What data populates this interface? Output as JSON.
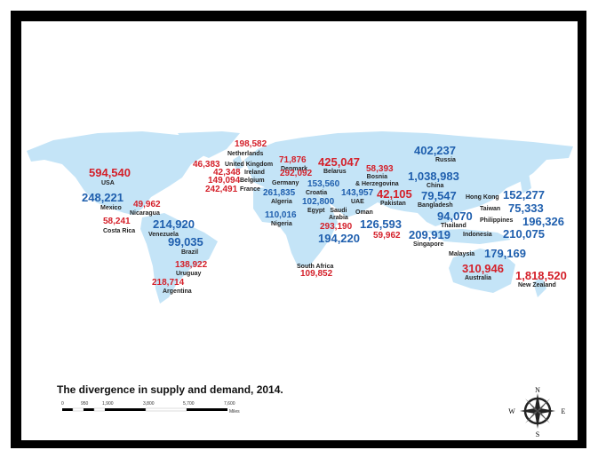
{
  "title": "The divergence in supply and demand, 2014.",
  "colors": {
    "land": "#c4e4f7",
    "surplus": "#d4202a",
    "deficit": "#1f5fae",
    "frame": "#000000"
  },
  "labels": [
    {
      "country": "USA",
      "value": "594,540",
      "color": "red"
    },
    {
      "country": "Mexico",
      "value": "248,221",
      "color": "blue"
    },
    {
      "country": "Nicaragua",
      "value": "49,962",
      "color": "red"
    },
    {
      "country": "Costa Rica",
      "value": "58,241",
      "color": "red"
    },
    {
      "country": "Venezuela",
      "value": "214,920",
      "color": "blue"
    },
    {
      "country": "Brazil",
      "value": "99,035",
      "color": "blue"
    },
    {
      "country": "Uruguay",
      "value": "138,922",
      "color": "red"
    },
    {
      "country": "Argentina",
      "value": "218,714",
      "color": "red"
    },
    {
      "country": "Netherlands",
      "value": "198,582",
      "color": "red"
    },
    {
      "country": "United Kingdom",
      "value": "46,383",
      "color": "red"
    },
    {
      "country": "Ireland",
      "value": "42,348",
      "color": "red"
    },
    {
      "country": "Belgium",
      "value": "149,094",
      "color": "red"
    },
    {
      "country": "France",
      "value": "242,491",
      "color": "red"
    },
    {
      "country": "Denmark",
      "value": "71,876",
      "color": "red"
    },
    {
      "country": "Belarus",
      "value": "425,047",
      "color": "red"
    },
    {
      "country": "Bosnia & Herzegovina",
      "value": "58,393",
      "color": "red"
    },
    {
      "country": "Germany",
      "value": "292,092",
      "color": "red"
    },
    {
      "country": "Croatia",
      "value": "153,560",
      "color": "blue"
    },
    {
      "country": "Algeria",
      "value": "261,835",
      "color": "blue"
    },
    {
      "country": "Egypt",
      "value": "102,800",
      "color": "blue"
    },
    {
      "country": "UAE",
      "value": "143,957",
      "color": "blue"
    },
    {
      "country": "Pakistan",
      "value": "42,105",
      "color": "red"
    },
    {
      "country": "Nigeria",
      "value": "110,016",
      "color": "blue"
    },
    {
      "country": "Saudi Arabia",
      "value": "293,190",
      "color": "red"
    },
    {
      "country": "Saudi Arabia",
      "value": "194,220",
      "color": "blue"
    },
    {
      "country": "Oman",
      "value": "126,593",
      "color": "blue"
    },
    {
      "country": "Oman",
      "value": "59,962",
      "color": "red"
    },
    {
      "country": "Russia",
      "value": "402,237",
      "color": "blue"
    },
    {
      "country": "China",
      "value": "1,038,983",
      "color": "blue"
    },
    {
      "country": "Bangladesh",
      "value": "79,547",
      "color": "blue"
    },
    {
      "country": "Thailand",
      "value": "94,070",
      "color": "blue"
    },
    {
      "country": "Hong Kong",
      "value": "152,277",
      "color": "blue"
    },
    {
      "country": "Taiwan",
      "value": "75,333",
      "color": "blue"
    },
    {
      "country": "Philippines",
      "value": "196,326",
      "color": "blue"
    },
    {
      "country": "Singapore",
      "value": "209,919",
      "color": "blue"
    },
    {
      "country": "Indonesia",
      "value": "210,075",
      "color": "blue"
    },
    {
      "country": "Malaysia",
      "value": "179,169",
      "color": "blue"
    },
    {
      "country": "Australia",
      "value": "310,946",
      "color": "red"
    },
    {
      "country": "New Zealand",
      "value": "1,818,520",
      "color": "red"
    },
    {
      "country": "South Africa",
      "value": "109,852",
      "color": "red"
    }
  ],
  "scale_bar": {
    "ticks": [
      "0",
      "950",
      "1,900",
      "3,800",
      "5,700",
      "7,600"
    ],
    "unit": "Miles"
  },
  "compass": {
    "n": "N",
    "s": "S",
    "e": "E",
    "w": "W"
  }
}
